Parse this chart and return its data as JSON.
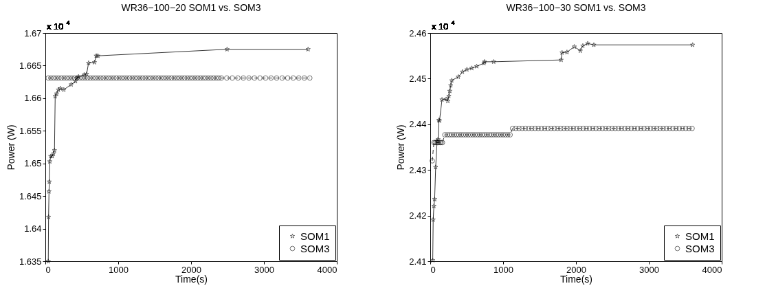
{
  "chart_data": [
    {
      "type": "line",
      "title": "WR36−100−20 SOM1 vs. SOM3",
      "xlabel": "Time(s)",
      "ylabel": "Power (W)",
      "annotations": [
        "x 10$^{4}$"
      ],
      "xlim": [
        0,
        4000
      ],
      "xticks": [
        0,
        1000,
        2000,
        3000,
        4000
      ],
      "ylim": [
        1.635,
        1.67
      ],
      "yticks": [
        1.635,
        1.64,
        1.645,
        1.65,
        1.655,
        1.66,
        1.665,
        1.67
      ],
      "grid": false,
      "legend": "bottom right",
      "series": [
        {
          "name": "SOM1",
          "color": "#000000",
          "marker": "star",
          "line_style": "solid",
          "x": [
            40,
            44,
            50,
            54,
            61,
            74,
            94,
            111,
            125,
            135,
            155,
            179,
            206,
            253,
            354,
            414,
            431,
            455,
            532,
            566,
            593,
            674,
            698,
            721,
            2494,
            3606
          ],
          "values": [
            1.635,
            1.6418,
            1.6457,
            1.6472,
            1.6503,
            1.6511,
            1.6511,
            1.6515,
            1.652,
            1.6603,
            1.6607,
            1.6613,
            1.6615,
            1.6613,
            1.6621,
            1.6626,
            1.6631,
            1.6633,
            1.6636,
            1.6637,
            1.6654,
            1.6655,
            1.6665,
            1.6665,
            1.6675,
            1.6675
          ]
        },
        {
          "name": "SOM3",
          "color": "#000000",
          "marker": "circle",
          "line_style": "dashed",
          "x": [
            40,
            76,
            112,
            148,
            184,
            220,
            256,
            292,
            328,
            364,
            400,
            436,
            472,
            508,
            544,
            580,
            616,
            652,
            688,
            724,
            760,
            796,
            832,
            868,
            904,
            940,
            976,
            1012,
            1048,
            1084,
            1120,
            1156,
            1192,
            1228,
            1264,
            1300,
            1336,
            1372,
            1408,
            1444,
            1480,
            1516,
            1552,
            1588,
            1624,
            1660,
            1696,
            1732,
            1768,
            1804,
            1840,
            1876,
            1912,
            1948,
            1984,
            2020,
            2056,
            2092,
            2128,
            2164,
            2200,
            2236,
            2272,
            2308,
            2344,
            2380,
            2416,
            2490,
            2566,
            2642,
            2718,
            2794,
            2870,
            2946,
            3022,
            3098,
            3174,
            3250,
            3326,
            3402,
            3478,
            3554,
            3630
          ],
          "values": [
            1.6631,
            1.6631,
            1.6631,
            1.6631,
            1.6631,
            1.6631,
            1.6631,
            1.6631,
            1.6631,
            1.6631,
            1.6631,
            1.6631,
            1.6631,
            1.6631,
            1.6631,
            1.6631,
            1.6631,
            1.6631,
            1.6631,
            1.6631,
            1.6631,
            1.6631,
            1.6631,
            1.6631,
            1.6631,
            1.6631,
            1.6631,
            1.6631,
            1.6631,
            1.6631,
            1.6631,
            1.6631,
            1.6631,
            1.6631,
            1.6631,
            1.6631,
            1.6631,
            1.6631,
            1.6631,
            1.6631,
            1.6631,
            1.6631,
            1.6631,
            1.6631,
            1.6631,
            1.6631,
            1.6631,
            1.6631,
            1.6631,
            1.6631,
            1.6631,
            1.6631,
            1.6631,
            1.6631,
            1.6631,
            1.6631,
            1.6631,
            1.6631,
            1.6631,
            1.6631,
            1.6631,
            1.6631,
            1.6631,
            1.6631,
            1.6631,
            1.6631,
            1.6631,
            1.6631,
            1.6631,
            1.6631,
            1.6631,
            1.6631,
            1.6631,
            1.6631,
            1.6631,
            1.6631,
            1.6631,
            1.6631,
            1.6631,
            1.6631,
            1.6631,
            1.6631,
            1.6631
          ]
        }
      ]
    },
    {
      "type": "line",
      "title": "WR36−100−30 SOM1 vs. SOM3",
      "xlabel": "Time(s)",
      "ylabel": "Power (W)",
      "annotations": [
        "x 10$^{4}$"
      ],
      "xlim": [
        0,
        4000
      ],
      "xticks": [
        0,
        1000,
        2000,
        3000,
        4000
      ],
      "ylim": [
        2.41,
        2.46
      ],
      "yticks": [
        2.41,
        2.42,
        2.43,
        2.44,
        2.45,
        2.46
      ],
      "grid": false,
      "legend": "bottom right",
      "series": [
        {
          "name": "SOM1",
          "color": "#000000",
          "marker": "star",
          "line_style": "solid",
          "x": [
            34,
            40,
            50,
            60,
            74,
            94,
            107,
            117,
            127,
            161,
            218,
            241,
            255,
            268,
            281,
            295,
            385,
            442,
            503,
            570,
            637,
            737,
            744,
            871,
            1796,
            1809,
            1876,
            1977,
            2060,
            2094,
            2161,
            2245,
            3601
          ],
          "values": [
            2.4102,
            2.4191,
            2.4221,
            2.4236,
            2.4306,
            2.4363,
            2.4367,
            2.4409,
            2.4408,
            2.4454,
            2.4455,
            2.4451,
            2.4462,
            2.4473,
            2.4485,
            2.4496,
            2.4504,
            2.4515,
            2.452,
            2.4523,
            2.4527,
            2.4534,
            2.4537,
            2.4537,
            2.4541,
            2.4557,
            2.4558,
            2.457,
            2.4561,
            2.4572,
            2.4577,
            2.4574,
            2.4574
          ]
        },
        {
          "name": "SOM3",
          "color": "#000000",
          "marker": "circle",
          "line_style": "dashed",
          "x": [
            27,
            50,
            67,
            84,
            100,
            117,
            134,
            150,
            167,
            200,
            232,
            264,
            296,
            328,
            360,
            392,
            424,
            456,
            488,
            520,
            552,
            584,
            616,
            648,
            680,
            712,
            744,
            776,
            808,
            840,
            872,
            904,
            936,
            968,
            1000,
            1032,
            1064,
            1096,
            1130,
            1174,
            1218,
            1262,
            1306,
            1350,
            1394,
            1438,
            1482,
            1526,
            1570,
            1614,
            1658,
            1702,
            1746,
            1790,
            1834,
            1878,
            1922,
            1966,
            2010,
            2054,
            2098,
            2142,
            2186,
            2230,
            2274,
            2318,
            2362,
            2406,
            2450,
            2494,
            2538,
            2582,
            2626,
            2670,
            2714,
            2758,
            2802,
            2846,
            2890,
            2934,
            2978,
            3022,
            3066,
            3110,
            3154,
            3198,
            3242,
            3286,
            3330,
            3374,
            3418,
            3462,
            3506,
            3550,
            3594
          ],
          "values": [
            2.432,
            2.436,
            2.436,
            2.436,
            2.436,
            2.436,
            2.436,
            2.436,
            2.436,
            2.4377,
            2.4377,
            2.4377,
            2.4377,
            2.4377,
            2.4377,
            2.4377,
            2.4377,
            2.4377,
            2.4377,
            2.4377,
            2.4377,
            2.4377,
            2.4377,
            2.4377,
            2.4377,
            2.4377,
            2.4377,
            2.4377,
            2.4377,
            2.4377,
            2.4377,
            2.4377,
            2.4377,
            2.4377,
            2.4377,
            2.4377,
            2.4377,
            2.4377,
            2.4391,
            2.4391,
            2.4391,
            2.4391,
            2.4391,
            2.4391,
            2.4391,
            2.4391,
            2.4391,
            2.4391,
            2.4391,
            2.4391,
            2.4391,
            2.4391,
            2.4391,
            2.4391,
            2.4391,
            2.4391,
            2.4391,
            2.4391,
            2.4391,
            2.4391,
            2.4391,
            2.4391,
            2.4391,
            2.4391,
            2.4391,
            2.4391,
            2.4391,
            2.4391,
            2.4391,
            2.4391,
            2.4391,
            2.4391,
            2.4391,
            2.4391,
            2.4391,
            2.4391,
            2.4391,
            2.4391,
            2.4391,
            2.4391,
            2.4391,
            2.4391,
            2.4391,
            2.4391,
            2.4391,
            2.4391,
            2.4391,
            2.4391,
            2.4391,
            2.4391,
            2.4391,
            2.4391,
            2.4391,
            2.4391,
            2.4391
          ]
        }
      ]
    }
  ]
}
